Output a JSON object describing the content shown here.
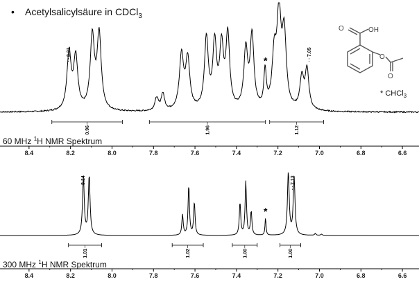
{
  "header": {
    "bullet": "•",
    "title_prefix": "Acetylsalicylsäure in CDCl",
    "title_sub": "3"
  },
  "molecule": {
    "oh_label": "OH",
    "o_label_top": "O",
    "o_label_ester": "O",
    "o_label_carbonyl": "O",
    "solvent_note": "* CHCl",
    "solvent_sub": "3"
  },
  "chart_data": [
    {
      "type": "line",
      "title": "60 MHz ¹H NMR Spektrum",
      "title_parts": [
        "60 MHz ",
        "1",
        "H NMR Spektrum"
      ],
      "xlabel": "",
      "ylabel": "",
      "xlim": [
        8.54,
        6.52
      ],
      "x_reversed": true,
      "ticks": [
        8.4,
        8.2,
        8.0,
        7.8,
        7.6,
        7.4,
        7.2,
        7.0,
        6.8,
        6.6
      ],
      "tick_labels": [
        "8.4",
        "8.2",
        "8.0",
        "7.8",
        "7.6",
        "7.4",
        "7.2",
        "7.0",
        "6.8",
        "6.6"
      ],
      "baseline_noise": 0.012,
      "peaks": [
        {
          "x": 8.207,
          "height": 0.55,
          "width": 0.012
        },
        {
          "x": 8.175,
          "height": 0.5,
          "width": 0.012
        },
        {
          "x": 8.095,
          "height": 0.7,
          "width": 0.012
        },
        {
          "x": 8.062,
          "height": 0.72,
          "width": 0.012
        },
        {
          "x": 7.785,
          "height": 0.12,
          "width": 0.01
        },
        {
          "x": 7.755,
          "height": 0.16,
          "width": 0.01
        },
        {
          "x": 7.665,
          "height": 0.52,
          "width": 0.012
        },
        {
          "x": 7.635,
          "height": 0.48,
          "width": 0.012
        },
        {
          "x": 7.545,
          "height": 0.68,
          "width": 0.011
        },
        {
          "x": 7.505,
          "height": 0.62,
          "width": 0.011
        },
        {
          "x": 7.472,
          "height": 0.58,
          "width": 0.011
        },
        {
          "x": 7.442,
          "height": 0.7,
          "width": 0.011
        },
        {
          "x": 7.355,
          "height": 0.56,
          "width": 0.011
        },
        {
          "x": 7.325,
          "height": 0.7,
          "width": 0.011
        },
        {
          "x": 7.262,
          "height": 0.35,
          "width": 0.007
        },
        {
          "x": 7.218,
          "height": 0.48,
          "width": 0.012
        },
        {
          "x": 7.195,
          "height": 0.86,
          "width": 0.012
        },
        {
          "x": 7.17,
          "height": 0.7,
          "width": 0.012
        },
        {
          "x": 7.085,
          "height": 0.3,
          "width": 0.011
        },
        {
          "x": 7.06,
          "height": 0.38,
          "width": 0.011
        }
      ],
      "peak_labels": [
        {
          "x": 8.21,
          "text": "8.21"
        },
        {
          "x": 7.05,
          "text": "7.05"
        }
      ],
      "solvent_marker": {
        "x": 7.26,
        "text": "*"
      },
      "integrals": [
        {
          "from": 8.29,
          "to": 7.95,
          "value": "0.96"
        },
        {
          "from": 7.82,
          "to": 7.26,
          "value": "1.96"
        },
        {
          "from": 7.24,
          "to": 6.98,
          "value": "1.12"
        }
      ]
    },
    {
      "type": "line",
      "title": "300 MHz ¹H NMR Spektrum",
      "title_parts": [
        "300 MHz ",
        "1",
        "H NMR Spektrum"
      ],
      "xlabel": "",
      "ylabel": "",
      "xlim": [
        8.54,
        6.52
      ],
      "x_reversed": true,
      "ticks": [
        8.4,
        8.2,
        8.0,
        7.8,
        7.6,
        7.4,
        7.2,
        7.0,
        6.8,
        6.6
      ],
      "tick_labels": [
        "8.4",
        "8.2",
        "8.0",
        "7.8",
        "7.6",
        "7.4",
        "7.2",
        "7.0",
        "6.8",
        "6.6"
      ],
      "baseline_noise": 0.0,
      "peaks": [
        {
          "x": 8.138,
          "height": 0.92,
          "width": 0.005
        },
        {
          "x": 8.11,
          "height": 0.95,
          "width": 0.005
        },
        {
          "x": 7.66,
          "height": 0.33,
          "width": 0.004
        },
        {
          "x": 7.63,
          "height": 0.8,
          "width": 0.004
        },
        {
          "x": 7.603,
          "height": 0.53,
          "width": 0.004
        },
        {
          "x": 7.383,
          "height": 0.52,
          "width": 0.004
        },
        {
          "x": 7.355,
          "height": 0.86,
          "width": 0.004
        },
        {
          "x": 7.329,
          "height": 0.38,
          "width": 0.004
        },
        {
          "x": 7.26,
          "height": 0.28,
          "width": 0.003
        },
        {
          "x": 7.15,
          "height": 1.0,
          "width": 0.005
        },
        {
          "x": 7.122,
          "height": 0.93,
          "width": 0.005
        },
        {
          "x": 7.02,
          "height": 0.03,
          "width": 0.004
        },
        {
          "x": 6.99,
          "height": 0.02,
          "width": 0.004
        }
      ],
      "peak_labels": [
        {
          "x": 8.14,
          "text": "8.14"
        },
        {
          "x": 7.13,
          "text": "7.13"
        }
      ],
      "solvent_marker": {
        "x": 7.26,
        "text": "*"
      },
      "integrals": [
        {
          "from": 8.21,
          "to": 8.05,
          "value": "1.01"
        },
        {
          "from": 7.71,
          "to": 7.56,
          "value": "1.02"
        },
        {
          "from": 7.42,
          "to": 7.3,
          "value": "1.00"
        },
        {
          "from": 7.19,
          "to": 7.09,
          "value": "1.00"
        }
      ]
    }
  ]
}
